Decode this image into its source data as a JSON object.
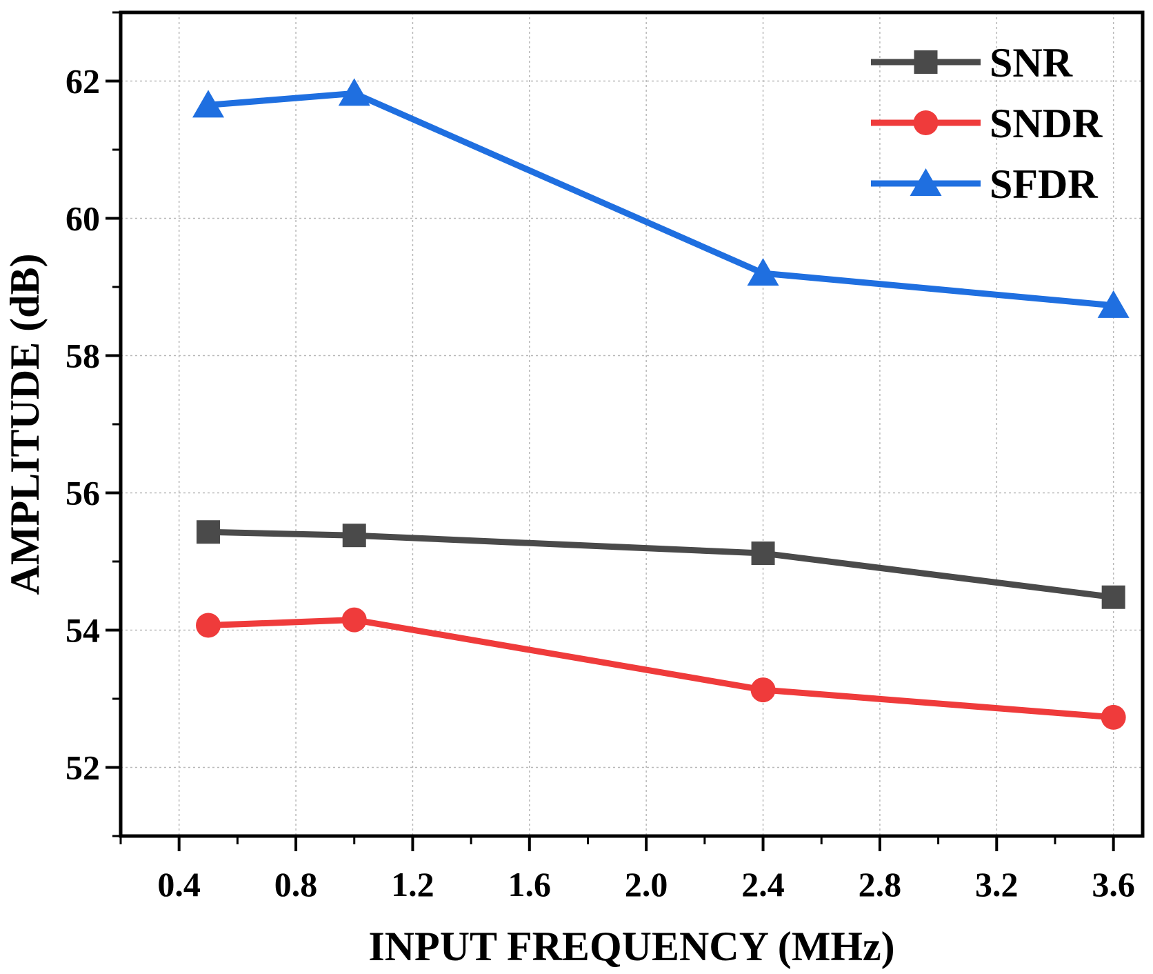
{
  "chart_data": {
    "type": "line",
    "title": "",
    "xlabel": "INPUT FREQUENCY (MHz)",
    "ylabel": "AMPLITUDE (dB)",
    "xlim": [
      0.2,
      3.7
    ],
    "ylim": [
      51,
      63
    ],
    "xticks": [
      0.4,
      0.8,
      1.2,
      1.6,
      2.0,
      2.4,
      2.8,
      3.2,
      3.6
    ],
    "xtick_labels": [
      "0.4",
      "0.8",
      "1.2",
      "1.6",
      "2.0",
      "2.4",
      "2.8",
      "3.2",
      "3.6"
    ],
    "yticks": [
      52,
      54,
      56,
      58,
      60,
      62
    ],
    "ytick_labels": [
      "52",
      "54",
      "56",
      "58",
      "60",
      "62"
    ],
    "grid": true,
    "legend_position": "top-right",
    "x": [
      0.5,
      1.0,
      2.4,
      3.6
    ],
    "series": [
      {
        "name": "SNR",
        "marker": "square",
        "color": "#4a4a4a",
        "values": [
          55.43,
          55.38,
          55.12,
          54.48
        ]
      },
      {
        "name": "SNDR",
        "marker": "circle",
        "color": "#ef3b3b",
        "values": [
          54.07,
          54.15,
          53.13,
          52.73
        ]
      },
      {
        "name": "SFDR",
        "marker": "triangle",
        "color": "#1f6fe0",
        "values": [
          61.65,
          61.82,
          59.2,
          58.73
        ]
      }
    ]
  }
}
